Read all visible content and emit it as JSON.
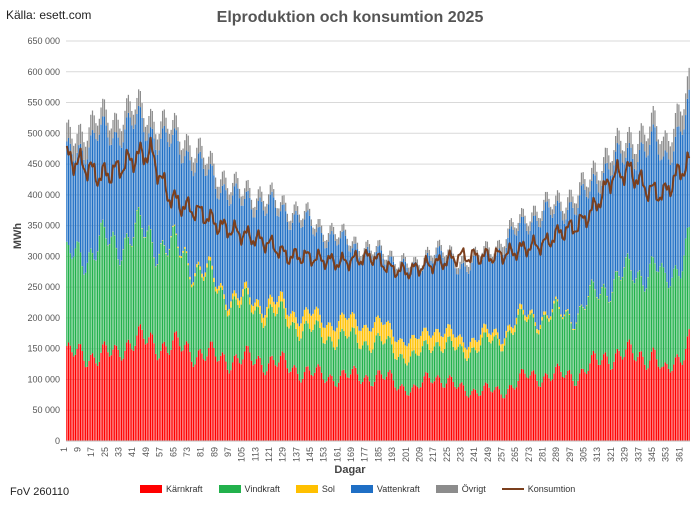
{
  "source": "Källa: esett.com",
  "footer": "FoV 260110",
  "chart_data": {
    "type": "bar",
    "stacked": true,
    "title": "Elproduktion och konsumtion 2025",
    "xlabel": "Dagar",
    "ylabel": "MWh",
    "ylim": [
      0,
      650000
    ],
    "yticks": [
      "0",
      "50 000",
      "100 000",
      "150 000",
      "200 000",
      "250 000",
      "300 000",
      "350 000",
      "400 000",
      "450 000",
      "500 000",
      "550 000",
      "600 000",
      "650 000"
    ],
    "xticks": [
      1,
      9,
      17,
      25,
      33,
      41,
      49,
      57,
      65,
      73,
      81,
      89,
      97,
      105,
      113,
      121,
      129,
      137,
      145,
      153,
      161,
      169,
      177,
      185,
      193,
      201,
      209,
      217,
      225,
      233,
      241,
      249,
      257,
      265,
      273,
      281,
      289,
      297,
      305,
      313,
      321,
      329,
      337,
      345,
      353,
      361
    ],
    "grid": true,
    "legend_position": "bottom",
    "series": [
      {
        "name": "Kärnkraft",
        "color": "#ff0000",
        "x": [
          1,
          30,
          33,
          40,
          60,
          70,
          90,
          120,
          150,
          180,
          190,
          205,
          215,
          230,
          255,
          270,
          300,
          318,
          345,
          350,
          365
        ],
        "values": [
          140000,
          140000,
          155000,
          165000,
          155000,
          150000,
          135000,
          130000,
          105000,
          105000,
          100000,
          80000,
          110000,
          85000,
          80000,
          105000,
          108000,
          140000,
          140000,
          105000,
          165000
        ]
      },
      {
        "name": "Vindkraft",
        "color": "#22b14c",
        "x": [
          1,
          20,
          50,
          70,
          100,
          140,
          170,
          200,
          230,
          260,
          300,
          330,
          365
        ],
        "values": [
          150000,
          180000,
          170000,
          150000,
          90000,
          70000,
          60000,
          50000,
          60000,
          90000,
          100000,
          130000,
          160000
        ]
      },
      {
        "name": "Sol",
        "color": "#ffc000",
        "x": [
          1,
          60,
          100,
          150,
          180,
          210,
          260,
          300,
          365
        ],
        "values": [
          0,
          1000,
          10000,
          25000,
          30000,
          25000,
          10000,
          1000,
          0
        ]
      },
      {
        "name": "Vattenkraft",
        "color": "#1f6fc5",
        "x": [
          1,
          30,
          60,
          100,
          140,
          180,
          210,
          240,
          280,
          320,
          365
        ],
        "values": [
          170000,
          180000,
          170000,
          160000,
          150000,
          110000,
          120000,
          120000,
          160000,
          190000,
          210000
        ]
      },
      {
        "name": "Övrigt",
        "color": "#8c8c8c",
        "x": [
          1,
          60,
          120,
          200,
          280,
          330,
          365
        ],
        "values": [
          30000,
          25000,
          15000,
          8000,
          15000,
          25000,
          35000
        ]
      },
      {
        "name": "Konsumtion",
        "color": "#7b3f1d",
        "type": "line",
        "x": [
          1,
          10,
          20,
          30,
          40,
          50,
          60,
          70,
          80,
          90,
          100,
          110,
          120,
          130,
          140,
          150,
          160,
          170,
          180,
          190,
          200,
          210,
          220,
          230,
          240,
          250,
          260,
          270,
          280,
          290,
          300,
          310,
          320,
          330,
          340,
          350,
          360,
          365
        ],
        "values": [
          460000,
          450000,
          430000,
          440000,
          460000,
          470000,
          400000,
          380000,
          370000,
          350000,
          340000,
          330000,
          320000,
          300000,
          300000,
          295000,
          290000,
          295000,
          300000,
          280000,
          275000,
          285000,
          290000,
          300000,
          300000,
          300000,
          305000,
          315000,
          320000,
          340000,
          350000,
          380000,
          430000,
          440000,
          410000,
          400000,
          440000,
          450000
        ]
      }
    ]
  }
}
